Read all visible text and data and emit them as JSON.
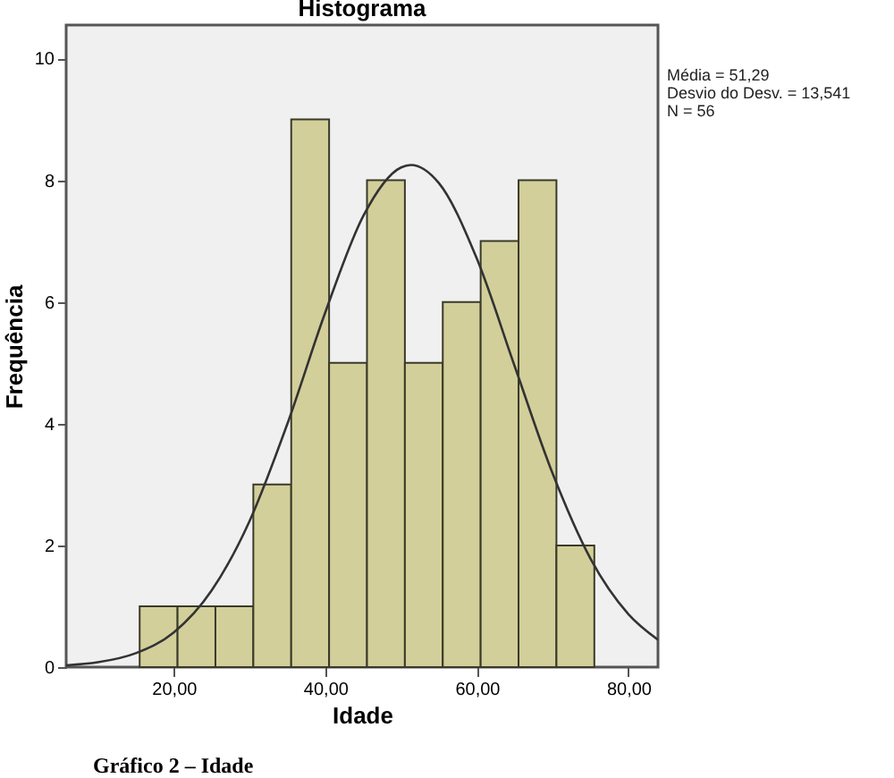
{
  "chart_data": {
    "type": "histogram",
    "title": "Histograma",
    "xlabel": "Idade",
    "ylabel": "Frequência",
    "bins": [
      15.5,
      20.5,
      25.5,
      30.5,
      35.5,
      40.5,
      45.5,
      50.5,
      55.5,
      60.5,
      65.5,
      70.5,
      75.5
    ],
    "values": [
      1,
      1,
      1,
      3,
      9,
      5,
      8,
      5,
      6,
      7,
      8,
      2
    ],
    "color": "#d3cf9a",
    "series": [
      {
        "type": "line",
        "color": "#333333",
        "x": [
          5.8,
          10,
          15,
          20,
          25,
          30,
          35,
          40,
          45,
          50,
          51.29,
          55,
          60,
          65,
          70,
          75,
          80,
          83.9
        ],
        "values": [
          0.03,
          0.08,
          0.23,
          0.57,
          1.26,
          2.4,
          4.0,
          5.83,
          7.41,
          8.21,
          8.25,
          7.95,
          6.71,
          4.94,
          3.18,
          1.78,
          0.87,
          0.45
        ]
      }
    ],
    "xlim": [
      5.8,
      83.9
    ],
    "xticks": [
      {
        "value": 20,
        "label": "20,00"
      },
      {
        "value": 40,
        "label": "40,00"
      },
      {
        "value": 60,
        "label": "60,00"
      },
      {
        "value": 80,
        "label": "80,00"
      }
    ],
    "ylim": [
      0,
      10.55
    ],
    "yticks": [
      0,
      2,
      4,
      6,
      8,
      10
    ],
    "grid": false,
    "annotations": [
      "Média = 51,29",
      " Desvio do Desv. = 13,541",
      "N = 56",
      "Gráfico 2 – Idade"
    ]
  }
}
